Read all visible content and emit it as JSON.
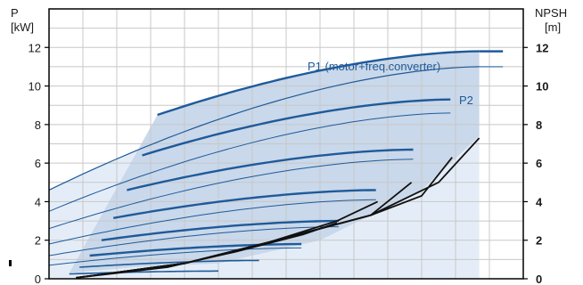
{
  "chart_data": {
    "type": "line",
    "left_axis": {
      "title_line1": "P",
      "title_line2": "[kW]",
      "ylim": [
        0,
        14
      ],
      "ticks": [
        "0",
        "2",
        "4",
        "6",
        "8",
        "10",
        "12"
      ]
    },
    "right_axis": {
      "title_line1": "NPSH",
      "title_line2": "[m]",
      "ylim": [
        0,
        14
      ],
      "ticks": [
        "0",
        "2",
        "4",
        "6",
        "8",
        "10",
        "12"
      ]
    },
    "xlim": [
      0,
      14
    ],
    "grid": true,
    "labels": {
      "p1": "P1 (motor+freq.converter)",
      "p2": "P2"
    },
    "colors": {
      "p1": "#1f5a9a",
      "p2": "#2e6aa8",
      "thin": "#1f5a9a",
      "npsh": "#111111",
      "band": "#c9d8ea",
      "band_light": "#e4edf7",
      "grid": "#c8c8c8"
    },
    "p1_series": [
      {
        "speed": 1.0,
        "x_range": [
          3.2,
          12.7
        ],
        "y_range": [
          8.5,
          11.8
        ]
      },
      {
        "speed": 0.9,
        "x_range": [
          2.75,
          11.85
        ],
        "y_range": [
          6.4,
          9.3
        ]
      },
      {
        "speed": 0.8,
        "x_range": [
          2.3,
          10.75
        ],
        "y_range": [
          4.6,
          6.7
        ]
      },
      {
        "speed": 0.7,
        "x_range": [
          1.9,
          9.65
        ],
        "y_range": [
          3.15,
          4.6
        ]
      },
      {
        "speed": 0.6,
        "x_range": [
          1.55,
          8.55
        ],
        "y_range": [
          2.0,
          3.0
        ]
      },
      {
        "speed": 0.5,
        "x_range": [
          1.2,
          7.45
        ],
        "y_range": [
          1.2,
          1.8
        ]
      },
      {
        "speed": 0.4,
        "x_range": [
          0.9,
          6.2
        ],
        "y_range": [
          0.6,
          0.95
        ]
      },
      {
        "speed": 0.3,
        "x_range": [
          0.6,
          5.0
        ],
        "y_range": [
          0.25,
          0.4
        ]
      }
    ],
    "p2_series": [
      {
        "speed": 1.0,
        "x_range": [
          0.0,
          12.7
        ],
        "y_range": [
          4.6,
          11.0
        ]
      },
      {
        "speed": 0.9,
        "x_range": [
          0.0,
          11.85
        ],
        "y_range": [
          3.5,
          8.6
        ]
      },
      {
        "speed": 0.8,
        "x_range": [
          0.0,
          10.75
        ],
        "y_range": [
          2.6,
          6.2
        ]
      },
      {
        "speed": 0.7,
        "x_range": [
          0.0,
          9.65
        ],
        "y_range": [
          1.8,
          4.1
        ]
      },
      {
        "speed": 0.6,
        "x_range": [
          0.0,
          8.55
        ],
        "y_range": [
          1.2,
          2.7
        ]
      },
      {
        "speed": 0.5,
        "x_range": [
          0.0,
          7.45
        ],
        "y_range": [
          0.7,
          1.6
        ]
      }
    ],
    "npsh_curves": [
      {
        "points": [
          [
            0.8,
            0.05
          ],
          [
            4,
            0.8
          ],
          [
            6.5,
            1.9
          ],
          [
            8.5,
            3.0
          ],
          [
            9.7,
            4.0
          ]
        ]
      },
      {
        "points": [
          [
            0.8,
            0.05
          ],
          [
            4,
            0.8
          ],
          [
            6.5,
            1.9
          ],
          [
            9.5,
            3.3
          ],
          [
            10.7,
            5.0
          ]
        ]
      },
      {
        "points": [
          [
            0.8,
            0.05
          ],
          [
            4,
            0.8
          ],
          [
            6.5,
            1.9
          ],
          [
            9.5,
            3.3
          ],
          [
            11.0,
            4.3
          ],
          [
            11.9,
            6.3
          ]
        ]
      },
      {
        "points": [
          [
            0.8,
            0.05
          ],
          [
            4,
            0.8
          ],
          [
            6.5,
            1.9
          ],
          [
            9.5,
            3.3
          ],
          [
            11.5,
            5.0
          ],
          [
            12.7,
            7.3
          ]
        ]
      },
      {
        "points": [
          [
            0.8,
            0.05
          ],
          [
            3.5,
            0.6
          ],
          [
            5.5,
            1.4
          ],
          [
            7.5,
            2.3
          ],
          [
            8.5,
            2.9
          ]
        ]
      }
    ]
  }
}
